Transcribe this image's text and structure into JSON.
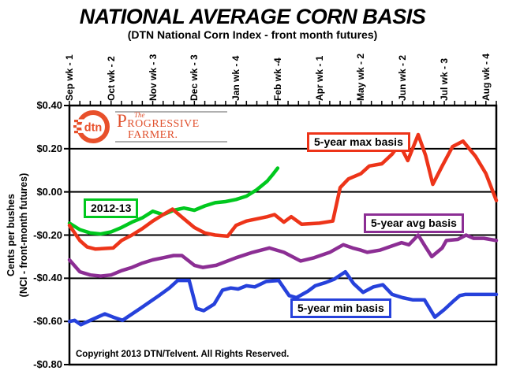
{
  "page": {
    "title": "NATIONAL AVERAGE CORN BASIS",
    "subtitle": "(DTN National Corn Index - front month futures)",
    "copyright": "Copyright 2013 DTN/Telvent. All Rights Reserved."
  },
  "logo": {
    "dtn_text": "dtn",
    "brand_the": "The",
    "brand_line1": "Progressive",
    "brand_line2": "Farmer.",
    "orange": "#e8502b",
    "rule_gray": "#b0b0b0"
  },
  "axes": {
    "y_title_line1": "Cents per bushes",
    "y_title_line2": "(NCI - front-month futures)"
  },
  "chart_data": {
    "type": "line",
    "title": "NATIONAL AVERAGE CORN BASIS",
    "subtitle": "(DTN National Corn Index - front month futures)",
    "ylabel": "Cents per bushes (NCI - front-month futures)",
    "ylim": [
      -0.8,
      0.4
    ],
    "y_tick_step": 0.2,
    "y_tick_labels": [
      "$0.40",
      "$0.20",
      "$0.00",
      "-$0.20",
      "-$0.40",
      "-$0.60",
      "-$0.80"
    ],
    "grid": "horizontal-black",
    "x_axis_position": "top",
    "x_minor_tick_max": 41,
    "x_tick_labels": [
      {
        "tick": 0,
        "label": "Sep wk - 1"
      },
      {
        "tick": 4,
        "label": "Oct wk - 2"
      },
      {
        "tick": 8,
        "label": "Nov wk - 3"
      },
      {
        "tick": 12,
        "label": "Dec wk - 3"
      },
      {
        "tick": 16,
        "label": "Jan wk - 4"
      },
      {
        "tick": 20,
        "label": "Feb wk -4"
      },
      {
        "tick": 24,
        "label": "Apr wk - 1"
      },
      {
        "tick": 28,
        "label": "May wk - 2"
      },
      {
        "tick": 32,
        "label": "Jun wk - 2"
      },
      {
        "tick": 36,
        "label": "Jul wk - 3"
      },
      {
        "tick": 40,
        "label": "Aug wk - 4"
      }
    ],
    "series": [
      {
        "name": "2012-13",
        "color": "#00c81e",
        "points": [
          [
            0,
            -0.145
          ],
          [
            1,
            -0.175
          ],
          [
            2,
            -0.19
          ],
          [
            3,
            -0.195
          ],
          [
            4,
            -0.185
          ],
          [
            5,
            -0.165
          ],
          [
            6,
            -0.14
          ],
          [
            7,
            -0.12
          ],
          [
            8,
            -0.09
          ],
          [
            9,
            -0.105
          ],
          [
            10,
            -0.085
          ],
          [
            11,
            -0.075
          ],
          [
            12,
            -0.085
          ],
          [
            13,
            -0.065
          ],
          [
            14,
            -0.05
          ],
          [
            15,
            -0.045
          ],
          [
            16,
            -0.035
          ],
          [
            17,
            -0.02
          ],
          [
            18,
            0.01
          ],
          [
            19,
            0.05
          ],
          [
            19.6,
            0.085
          ],
          [
            20,
            0.11
          ]
        ]
      },
      {
        "name": "5-year max basis",
        "color": "#ed3419",
        "points": [
          [
            0,
            -0.155
          ],
          [
            1,
            -0.225
          ],
          [
            1.7,
            -0.255
          ],
          [
            2.5,
            -0.265
          ],
          [
            4.2,
            -0.26
          ],
          [
            5,
            -0.225
          ],
          [
            6,
            -0.2
          ],
          [
            7,
            -0.17
          ],
          [
            8,
            -0.135
          ],
          [
            9,
            -0.105
          ],
          [
            9.9,
            -0.08
          ],
          [
            11,
            -0.125
          ],
          [
            12,
            -0.165
          ],
          [
            13,
            -0.19
          ],
          [
            14,
            -0.2
          ],
          [
            15.2,
            -0.205
          ],
          [
            16,
            -0.155
          ],
          [
            17,
            -0.135
          ],
          [
            18,
            -0.125
          ],
          [
            19,
            -0.115
          ],
          [
            19.7,
            -0.105
          ],
          [
            20.6,
            -0.14
          ],
          [
            21.3,
            -0.115
          ],
          [
            22.3,
            -0.15
          ],
          [
            24,
            -0.145
          ],
          [
            25.3,
            -0.135
          ],
          [
            26,
            0.02
          ],
          [
            26.8,
            0.06
          ],
          [
            28,
            0.085
          ],
          [
            28.8,
            0.12
          ],
          [
            30,
            0.13
          ],
          [
            31,
            0.175
          ],
          [
            31.7,
            0.22
          ],
          [
            32.5,
            0.145
          ],
          [
            33.5,
            0.265
          ],
          [
            34.2,
            0.17
          ],
          [
            34.9,
            0.035
          ],
          [
            35.8,
            0.12
          ],
          [
            36.8,
            0.21
          ],
          [
            37.8,
            0.235
          ],
          [
            39,
            0.165
          ],
          [
            40,
            0.085
          ],
          [
            41,
            -0.04
          ]
        ]
      },
      {
        "name": "5-year avg basis",
        "color": "#8c2e94",
        "points": [
          [
            0,
            -0.315
          ],
          [
            1,
            -0.37
          ],
          [
            2,
            -0.385
          ],
          [
            3,
            -0.39
          ],
          [
            4,
            -0.385
          ],
          [
            5,
            -0.365
          ],
          [
            6,
            -0.35
          ],
          [
            7,
            -0.33
          ],
          [
            8,
            -0.315
          ],
          [
            9,
            -0.305
          ],
          [
            10,
            -0.295
          ],
          [
            10.8,
            -0.295
          ],
          [
            12,
            -0.34
          ],
          [
            12.8,
            -0.35
          ],
          [
            14.1,
            -0.34
          ],
          [
            16,
            -0.305
          ],
          [
            17.6,
            -0.28
          ],
          [
            19.2,
            -0.26
          ],
          [
            20.6,
            -0.28
          ],
          [
            22.2,
            -0.32
          ],
          [
            23.5,
            -0.305
          ],
          [
            25,
            -0.28
          ],
          [
            26.3,
            -0.245
          ],
          [
            27.2,
            -0.26
          ],
          [
            28,
            -0.27
          ],
          [
            28.6,
            -0.28
          ],
          [
            29.8,
            -0.27
          ],
          [
            31,
            -0.25
          ],
          [
            31.9,
            -0.235
          ],
          [
            32.6,
            -0.245
          ],
          [
            33.5,
            -0.2
          ],
          [
            34.2,
            -0.255
          ],
          [
            34.8,
            -0.3
          ],
          [
            35.8,
            -0.26
          ],
          [
            36.2,
            -0.225
          ],
          [
            37.3,
            -0.22
          ],
          [
            38.1,
            -0.2
          ],
          [
            38.8,
            -0.215
          ],
          [
            39.8,
            -0.215
          ],
          [
            41,
            -0.225
          ]
        ]
      },
      {
        "name": "5-year min basis",
        "color": "#2641db",
        "points": [
          [
            0,
            -0.6
          ],
          [
            0.5,
            -0.595
          ],
          [
            1.1,
            -0.615
          ],
          [
            2,
            -0.595
          ],
          [
            3.4,
            -0.565
          ],
          [
            4.2,
            -0.58
          ],
          [
            5.1,
            -0.595
          ],
          [
            6.8,
            -0.54
          ],
          [
            8.6,
            -0.48
          ],
          [
            9.6,
            -0.445
          ],
          [
            10.4,
            -0.41
          ],
          [
            11.5,
            -0.41
          ],
          [
            12.2,
            -0.54
          ],
          [
            12.9,
            -0.55
          ],
          [
            13.9,
            -0.52
          ],
          [
            14.7,
            -0.455
          ],
          [
            15.5,
            -0.445
          ],
          [
            16.2,
            -0.45
          ],
          [
            17,
            -0.435
          ],
          [
            17.8,
            -0.44
          ],
          [
            18.9,
            -0.415
          ],
          [
            20.1,
            -0.41
          ],
          [
            21.1,
            -0.48
          ],
          [
            21.8,
            -0.49
          ],
          [
            22.9,
            -0.46
          ],
          [
            23.6,
            -0.435
          ],
          [
            24.6,
            -0.42
          ],
          [
            25.4,
            -0.405
          ],
          [
            26.5,
            -0.37
          ],
          [
            27.3,
            -0.425
          ],
          [
            28.2,
            -0.465
          ],
          [
            29.2,
            -0.44
          ],
          [
            30.1,
            -0.43
          ],
          [
            31,
            -0.475
          ],
          [
            32,
            -0.49
          ],
          [
            33,
            -0.5
          ],
          [
            34.1,
            -0.5
          ],
          [
            35.1,
            -0.58
          ],
          [
            36,
            -0.545
          ],
          [
            36.9,
            -0.505
          ],
          [
            37.5,
            -0.48
          ],
          [
            38,
            -0.475
          ],
          [
            41,
            -0.475
          ]
        ]
      }
    ],
    "legend_position": "inline-boxes-on-plot"
  }
}
